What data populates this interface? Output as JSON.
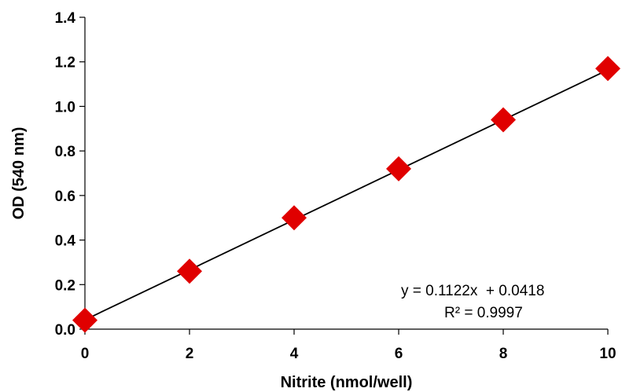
{
  "chart_data": {
    "type": "scatter",
    "title": "",
    "xlabel": "Nitrite (nmol/well)",
    "ylabel": "OD (540 nm)",
    "xlim": [
      0,
      10
    ],
    "ylim": [
      0,
      1.4
    ],
    "x_ticks": [
      "0",
      "2",
      "4",
      "6",
      "8",
      "10"
    ],
    "y_ticks": [
      "0.0",
      "0.2",
      "0.4",
      "0.6",
      "0.8",
      "1.0",
      "1.2",
      "1.4"
    ],
    "grid": false,
    "legend": "none",
    "series": [
      {
        "marker": "diamond",
        "color": "#e00000",
        "x": [
          0,
          2,
          4,
          6,
          8,
          10
        ],
        "y": [
          0.04,
          0.26,
          0.5,
          0.72,
          0.94,
          1.17
        ]
      }
    ],
    "trendline": {
      "type": "linear",
      "slope": 0.1122,
      "intercept": 0.0418,
      "color": "#000000",
      "equation_label": "y = 0.1122x  + 0.0418",
      "r2_label": "R² = 0.9997"
    }
  }
}
